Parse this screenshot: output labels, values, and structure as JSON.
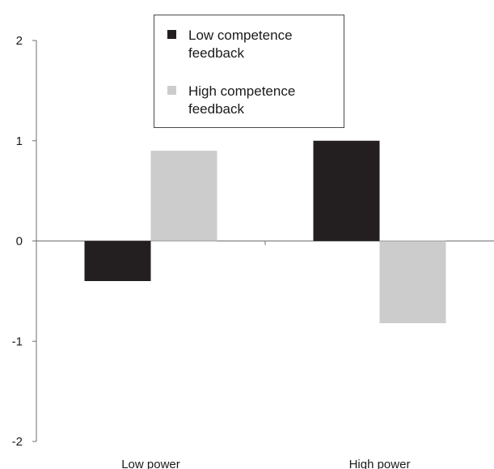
{
  "chart_data": {
    "type": "bar",
    "title": "",
    "xlabel": "",
    "ylabel": "",
    "categories": [
      "Low power",
      "High power"
    ],
    "series": [
      {
        "name": "Low competence feedback",
        "color": "#231f20",
        "values": [
          -0.4,
          1.0
        ]
      },
      {
        "name": "High competence feedback",
        "color": "#cccccc",
        "values": [
          0.9,
          -0.82
        ]
      }
    ],
    "ylim": [
      -2,
      2
    ],
    "yticks": [
      "2",
      "1",
      "0",
      "-1",
      "-2"
    ],
    "grid": false,
    "legend_position": "top-center",
    "legend": {
      "items": [
        {
          "line1": "Low competence",
          "line2": "feedback"
        },
        {
          "line1": "High competence",
          "line2": "feedback"
        }
      ]
    }
  }
}
